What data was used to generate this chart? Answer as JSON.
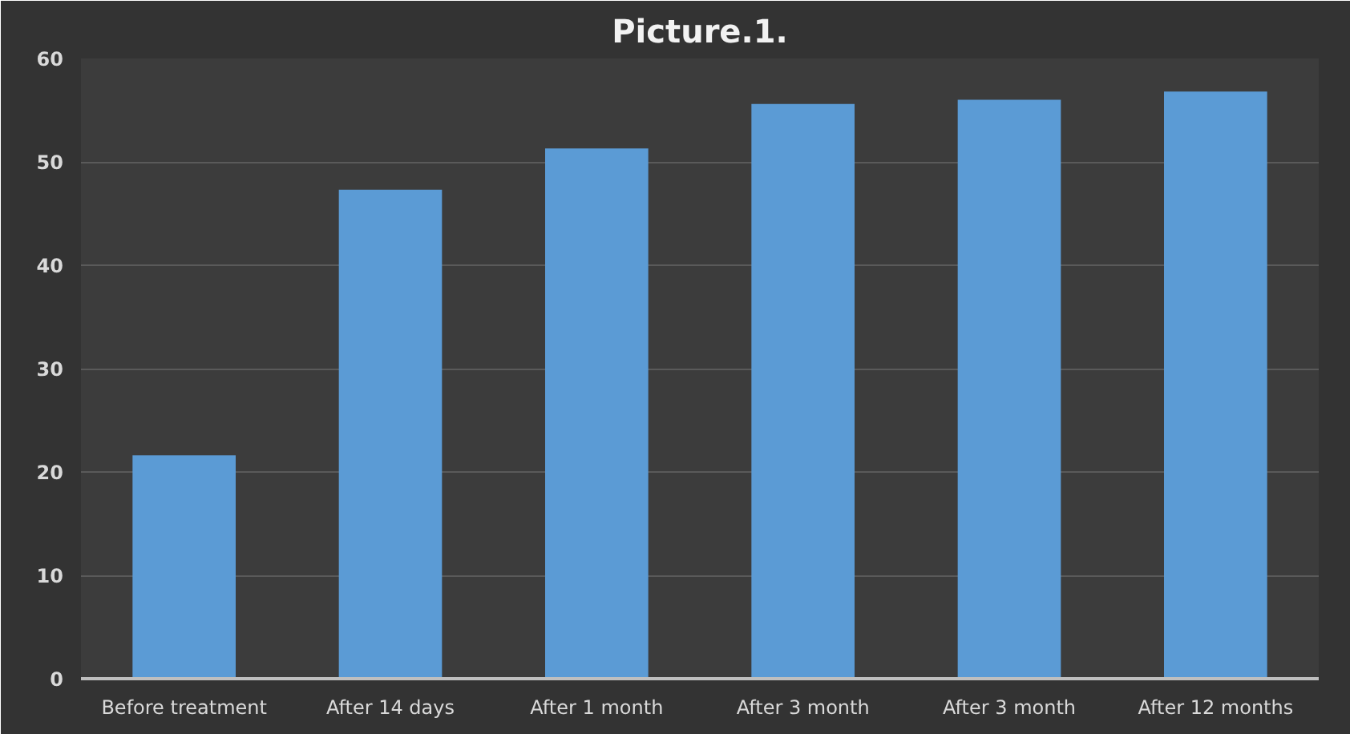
{
  "chart_data": {
    "type": "bar",
    "title": "Picture.1.",
    "categories": [
      "Before treatment",
      "After 14 days",
      "After 1 month",
      "After 3 month",
      "After 3 month",
      "After 12 months"
    ],
    "values": [
      21.6,
      47.3,
      51.3,
      55.6,
      56.0,
      56.8
    ],
    "color": "#5b9bd5",
    "ylim": [
      0,
      60
    ],
    "yticks": [
      0,
      10,
      20,
      30,
      40,
      50,
      60
    ],
    "grid": "y"
  }
}
